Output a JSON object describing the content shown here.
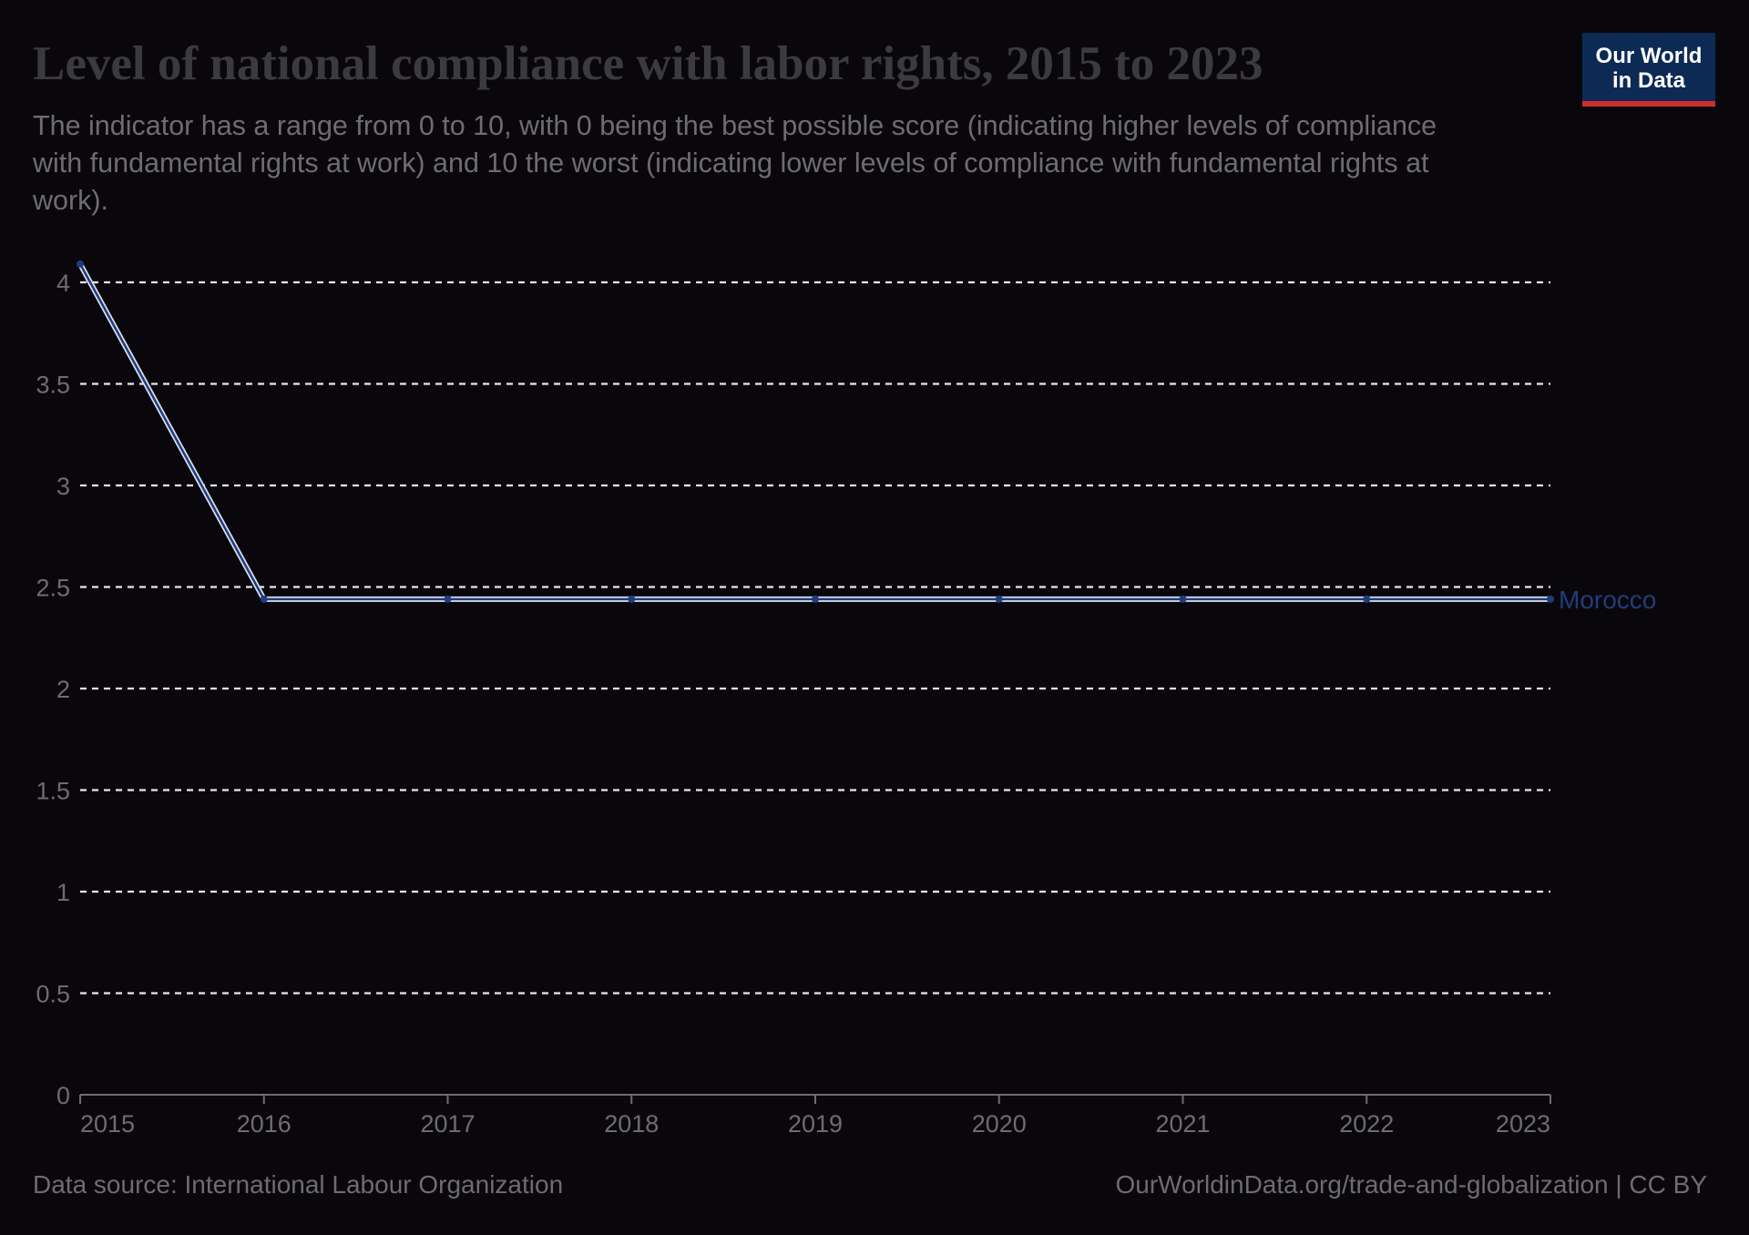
{
  "header": {
    "title": "Level of national compliance with labor rights, 2015 to 2023",
    "subtitle": "The indicator has a range from 0 to 10, with 0 being the best possible score (indicating higher levels of compliance with fundamental rights at work) and 10 the worst (indicating lower levels of compliance with fundamental rights at work)."
  },
  "logo": {
    "line1": "Our World",
    "line2": "in Data"
  },
  "footer": {
    "source": "Data source: International Labour Organization",
    "license": "OurWorldinData.org/trade-and-globalization | CC BY"
  },
  "colors": {
    "series": "#1f3d7a",
    "axis": "#6d6c70",
    "grid": "#e8e8e8",
    "label": "#1f3d7a"
  },
  "chart_data": {
    "type": "line",
    "title": "Level of national compliance with labor rights, 2015 to 2023",
    "x": [
      2015,
      2016,
      2017,
      2018,
      2019,
      2020,
      2021,
      2022,
      2023
    ],
    "series": [
      {
        "name": "Morocco",
        "values": [
          4.09,
          2.44,
          2.44,
          2.44,
          2.44,
          2.44,
          2.44,
          2.44,
          2.44
        ]
      }
    ],
    "xlim": [
      2015,
      2023
    ],
    "ylim": [
      0,
      4
    ],
    "yticks": [
      0,
      0.5,
      1,
      1.5,
      2,
      2.5,
      3,
      3.5,
      4
    ],
    "ytick_labels": [
      "0",
      "0.5",
      "1",
      "1.5",
      "2",
      "2.5",
      "3",
      "3.5",
      "4"
    ],
    "xticks": [
      2015,
      2016,
      2017,
      2018,
      2019,
      2020,
      2021,
      2022,
      2023
    ],
    "xtick_labels": [
      "2015",
      "2016",
      "2017",
      "2018",
      "2019",
      "2020",
      "2021",
      "2022",
      "2023"
    ],
    "grid": "horizontal-dashed",
    "legend": "inline-right"
  }
}
